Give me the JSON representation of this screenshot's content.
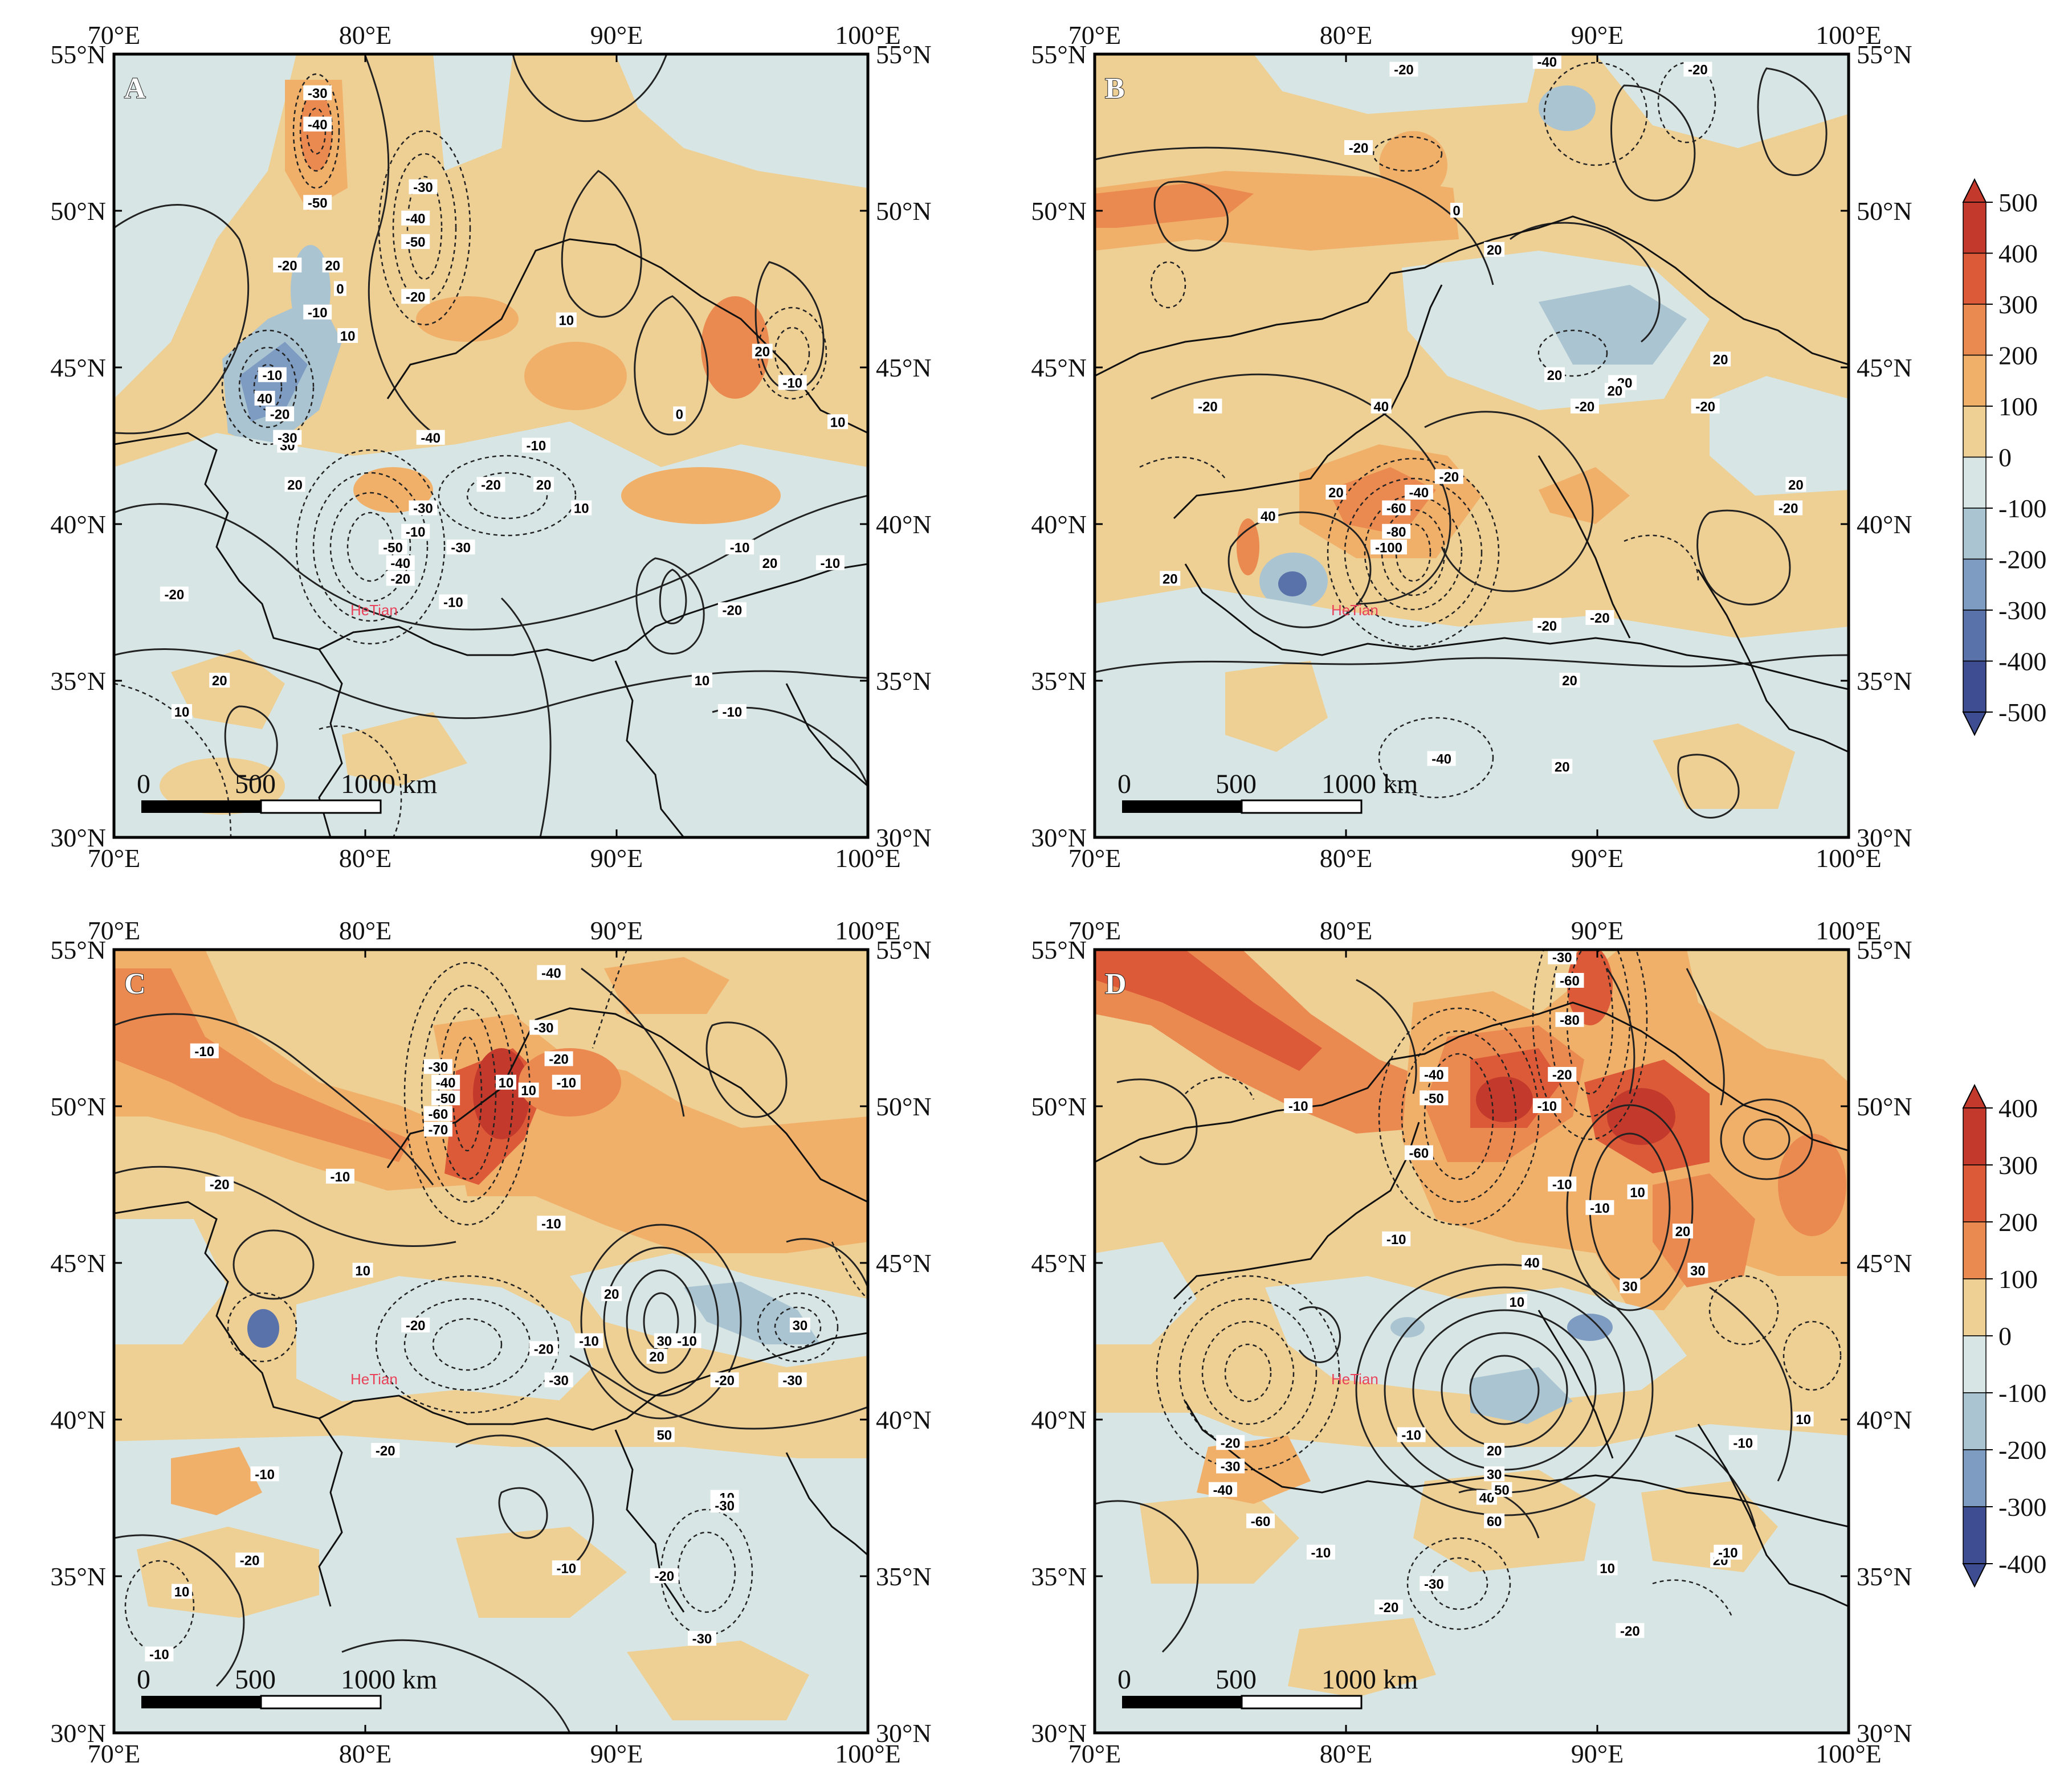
{
  "panels": [
    {
      "letter": "A",
      "x_ticks": [
        "70°E",
        "80°E",
        "90°E",
        "100°E"
      ],
      "y_ticks": [
        "55°N",
        "50°N",
        "45°N",
        "40°N",
        "35°N",
        "30°N"
      ],
      "city": "HeTian",
      "scale_bar": {
        "labels": [
          "0",
          "500",
          "1000 km"
        ]
      },
      "contour_labels": [
        "-30",
        "-40",
        "-50",
        "-20",
        "-10",
        "20",
        "10",
        "-30",
        "-40",
        "-50",
        "0",
        "-20",
        "-40",
        "-30",
        "-10",
        "20",
        "30",
        "40",
        "-10",
        "-20",
        "-30",
        "-50",
        "-40",
        "-20",
        "-30",
        "-10",
        "10",
        "-20",
        "-10",
        "20",
        "10",
        "20",
        "-10",
        "10",
        "-10",
        "-20",
        "20",
        "10",
        "-10",
        "0",
        "-10",
        "10",
        "20",
        "-20"
      ]
    },
    {
      "letter": "B",
      "x_ticks": [
        "70°E",
        "80°E",
        "90°E",
        "100°E"
      ],
      "y_ticks": [
        "55°N",
        "50°N",
        "45°N",
        "40°N",
        "35°N",
        "30°N"
      ],
      "city": "HeTian",
      "scale_bar": {
        "labels": [
          "0",
          "500",
          "1000 km"
        ]
      },
      "contour_labels": [
        "-20",
        "-40",
        "-20",
        "-20",
        "0",
        "20",
        "-20",
        "20",
        "20",
        "-20",
        "-20",
        "-20",
        "20",
        "-20",
        "40",
        "-20",
        "-40",
        "-60",
        "-80",
        "-100",
        "20",
        "40",
        "20",
        "-20",
        "20",
        "20",
        "-40",
        "20",
        "-20"
      ]
    },
    {
      "letter": "C",
      "x_ticks": [
        "70°E",
        "80°E",
        "90°E",
        "100°E"
      ],
      "y_ticks": [
        "55°N",
        "50°N",
        "45°N",
        "40°N",
        "35°N",
        "30°N"
      ],
      "city": "HeTian",
      "scale_bar": {
        "labels": [
          "0",
          "500",
          "1000 km"
        ]
      },
      "contour_labels": [
        "-10",
        "-40",
        "-30",
        "-20",
        "-10",
        "10",
        "-30",
        "-40",
        "-50",
        "-60",
        "-70",
        "10",
        "-20",
        "-10",
        "-10",
        "-10",
        "10",
        "-20",
        "-10",
        "20",
        "-20",
        "-30",
        "20",
        "30",
        "50",
        "-10",
        "-20",
        "30",
        "-30",
        "-20",
        "-10",
        "-20",
        "-30",
        "10",
        "-10",
        "-20",
        "-30",
        "-10"
      ]
    },
    {
      "letter": "D",
      "x_ticks": [
        "70°E",
        "80°E",
        "90°E",
        "100°E"
      ],
      "y_ticks": [
        "55°N",
        "50°N",
        "45°N",
        "40°N",
        "35°N",
        "30°N"
      ],
      "city": "HeTian",
      "scale_bar": {
        "labels": [
          "0",
          "500",
          "1000 km"
        ]
      },
      "contour_labels": [
        "-30",
        "-60",
        "-80",
        "-40",
        "-50",
        "-20",
        "-10",
        "-10",
        "-60",
        "10",
        "-10",
        "30",
        "-10",
        "20",
        "30",
        "-10",
        "10",
        "-10",
        "40",
        "-20",
        "-30",
        "-40",
        "-60",
        "20",
        "30",
        "40",
        "50",
        "60",
        "-10",
        "10",
        "-20",
        "-30",
        "-10",
        "20",
        "-20",
        "-10",
        "10"
      ]
    }
  ],
  "colorbars": [
    {
      "labels": [
        "500",
        "400",
        "300",
        "200",
        "100",
        "0",
        "-100",
        "-200",
        "-300",
        "-400",
        "-500"
      ]
    },
    {
      "labels": [
        "400",
        "300",
        "200",
        "100",
        "0",
        "-100",
        "-200",
        "-300",
        "-400"
      ]
    }
  ],
  "colors": {
    "fill_pos1": "#eecf94",
    "fill_pos2": "#f0b06a",
    "fill_pos3": "#eb8a50",
    "fill_pos4": "#dc5a38",
    "fill_pos5": "#c33a2c",
    "fill_neg1": "#d7e6e4",
    "fill_neg2": "#aac4d2",
    "fill_neg3": "#7e9bc2",
    "fill_neg4": "#5a72aa",
    "fill_neg5": "#3e4d92"
  }
}
